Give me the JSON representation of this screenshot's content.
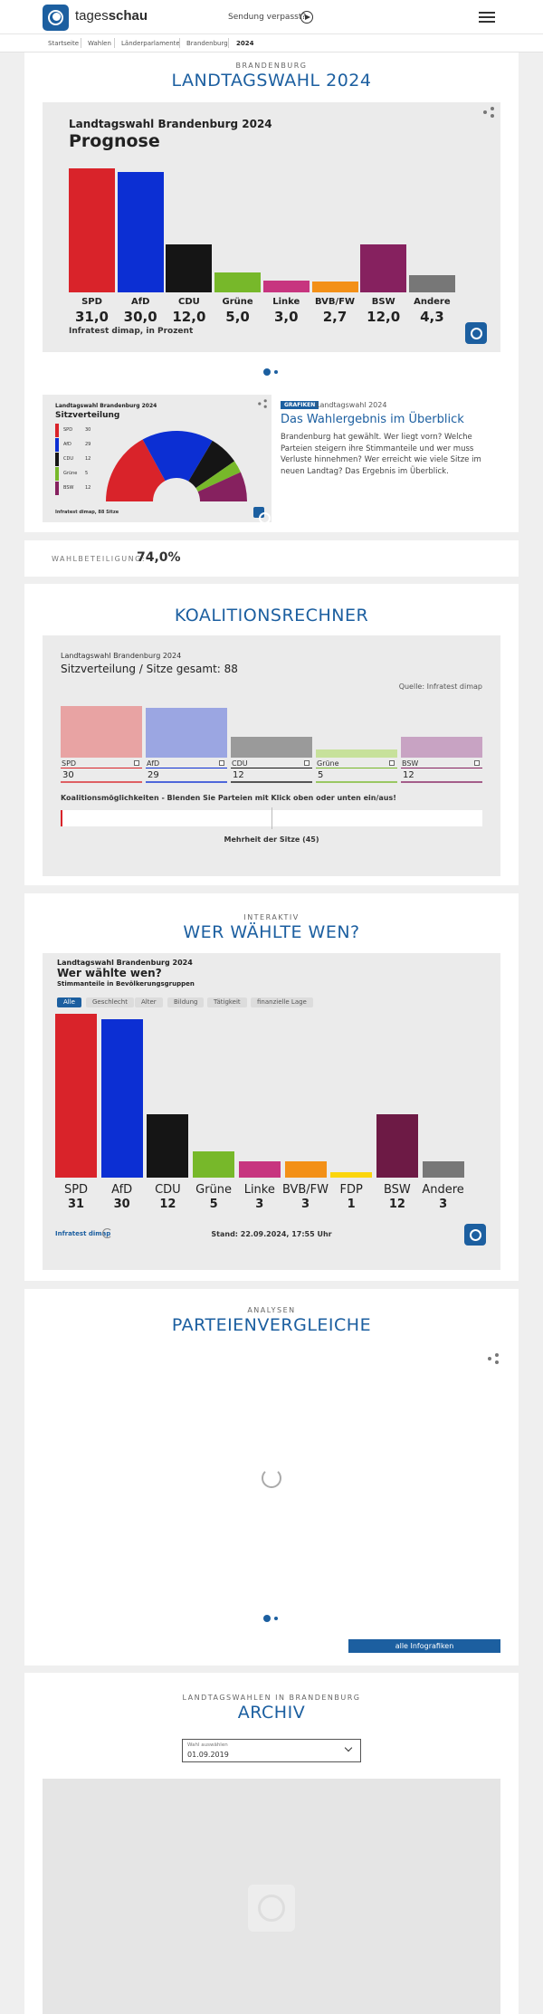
{
  "header": {
    "logo_prefix": "tages",
    "logo_suffix": "schau",
    "missed_label": "Sendung verpasst?"
  },
  "breadcrumb": [
    "Startseite",
    "Wahlen",
    "Länderparlamente",
    "Brandenburg",
    "2024"
  ],
  "hero": {
    "kicker": "BRANDENBURG",
    "title": "LANDTAGSWAHL 2024"
  },
  "prognose": {
    "subtitle": "Landtagswahl Brandenburg 2024",
    "title": "Prognose",
    "source": "Infratest dimap, in Prozent"
  },
  "chart_data": [
    {
      "type": "bar",
      "title": "Prognose",
      "subtitle": "Landtagswahl Brandenburg 2024",
      "categories": [
        "SPD",
        "AfD",
        "CDU",
        "Grüne",
        "Linke",
        "BVB/FW",
        "BSW",
        "Andere"
      ],
      "values": [
        31.0,
        30.0,
        12.0,
        5.0,
        3.0,
        2.7,
        12.0,
        4.3
      ],
      "value_labels": [
        "31,0",
        "30,0",
        "12,0",
        "5,0",
        "3,0",
        "2,7",
        "12,0",
        "4,3"
      ],
      "colors": [
        "#d9232a",
        "#0c2fd3",
        "#151515",
        "#77b82a",
        "#c7357f",
        "#f39017",
        "#86215f",
        "#777777"
      ],
      "source": "Infratest dimap, in Prozent"
    },
    {
      "type": "pie",
      "title": "Sitzverteilung",
      "subtitle": "Landtagswahl Brandenburg 2024",
      "categories": [
        "SPD",
        "AfD",
        "CDU",
        "Grüne",
        "BSW"
      ],
      "values": [
        30,
        29,
        12,
        5,
        12
      ],
      "colors": [
        "#d9232a",
        "#0c2fd3",
        "#151515",
        "#77b82a",
        "#86215f"
      ],
      "source": "Infratest dimap, 88 Sitze"
    },
    {
      "type": "bar",
      "title": "Sitzverteilung / Sitze gesamt: 88",
      "subtitle": "Landtagswahl Brandenburg 2024",
      "categories": [
        "SPD",
        "AfD",
        "CDU",
        "Grüne",
        "BSW"
      ],
      "values": [
        30,
        29,
        12,
        5,
        12
      ],
      "colors": [
        "#e8a3a3",
        "#9ba6e2",
        "#9a9a9a",
        "#c7e19b",
        "#c8a3c3"
      ],
      "source": "Quelle: Infratest dimap"
    },
    {
      "type": "bar",
      "title": "Wer wählte wen?",
      "subtitle": "Landtagswahl Brandenburg 2024",
      "categories": [
        "SPD",
        "AfD",
        "CDU",
        "Grüne",
        "Linke",
        "BVB/FW",
        "FDP",
        "BSW",
        "Andere"
      ],
      "values": [
        31,
        30,
        12,
        5,
        3,
        3,
        1,
        12,
        3
      ],
      "colors": [
        "#d9232a",
        "#0c2fd3",
        "#151515",
        "#77b82a",
        "#c7357f",
        "#f39017",
        "#fbd50d",
        "#6d1a45",
        "#777777"
      ]
    }
  ],
  "article": {
    "chart_subtitle": "Landtagswahl Brandenburg 2024",
    "chart_title": "Sitzverteilung",
    "legend_values": [
      "30",
      "29",
      "12",
      "5",
      "12"
    ],
    "chart_source": "Infratest dimap, 88 Sitze",
    "tag": "GRAFIKEN",
    "meta": "Landtagswahl 2024",
    "headline": "Das Wahlergebnis im Überblick",
    "teaser": "Brandenburg hat gewählt. Wer liegt vorn? Welche Parteien steigern ihre Stimmanteile und wer muss Verluste hinnehmen? Wer erreicht wie viele Sitze im neuen Landtag? Das Ergebnis im Überblick."
  },
  "turnout": {
    "label": "WAHLBETEILIGUNG:",
    "value": "74,0%"
  },
  "koalition": {
    "title": "KOALITIONSRECHNER",
    "subtitle": "Landtagswahl Brandenburg 2024",
    "chart_title": "Sitzverteilung / Sitze gesamt: 88",
    "source": "Quelle: Infratest dimap",
    "hint": "Koalitionsmöglichkeiten - Blenden Sie Parteien mit Klick oben oder unten ein/aus!",
    "majority": "Mehrheit der Sitze (45)",
    "border_colors": [
      "#d9232a",
      "#0c2fd3",
      "#151515",
      "#77b82a",
      "#86215f"
    ],
    "bar_fill_fraction": 0.0
  },
  "wer": {
    "kicker": "INTERAKTIV",
    "title": "WER WÄHLTE WEN?",
    "chart_subtitle": "Landtagswahl Brandenburg 2024",
    "chart_title": "Wer wählte wen?",
    "chart_sub2": "Stimmanteile in Bevölkerungsgruppen",
    "filters": [
      "Alle",
      "Geschlecht",
      "Alter",
      "Bildung",
      "Tätigkeit",
      "finanzielle Lage"
    ],
    "active_filter": "Alle",
    "source": "Infratest dimap",
    "stand": "Stand: 22.09.2024, 17:55 Uhr"
  },
  "analysen": {
    "kicker": "ANALYSEN",
    "title": "PARTEIENVERGLEICHE",
    "button": "alle Infografiken"
  },
  "archiv": {
    "kicker": "LANDTAGSWAHLEN IN BRANDENBURG",
    "title": "ARCHIV",
    "select_label": "Wahl auswählen",
    "select_value": "01.09.2019"
  }
}
